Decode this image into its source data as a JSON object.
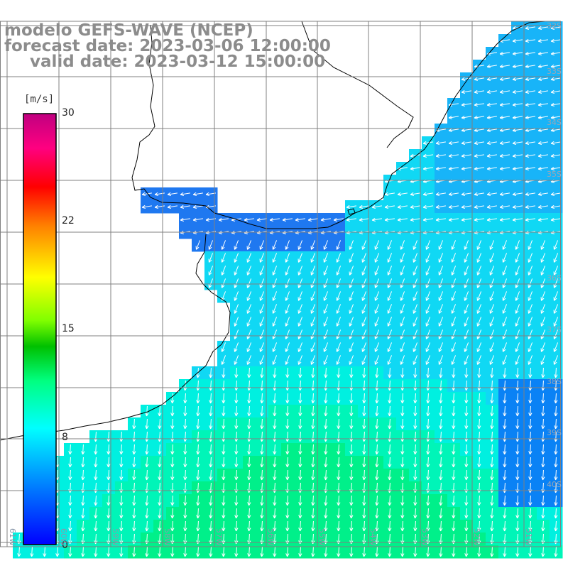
{
  "header": {
    "line1": "modelo GEFS-WAVE (NCEP)",
    "line2": "forecast date: 2023-03-06 12:00:00",
    "line3": "valid date: 2023-03-12 15:00:00"
  },
  "colorbar": {
    "unit": "[m/s]",
    "ticks": [
      "30",
      "22",
      "15",
      "8",
      "0"
    ],
    "tick_values": [
      30,
      22,
      15,
      8,
      0
    ],
    "colors": [
      "#0000ff",
      "#0080ff",
      "#00ffff",
      "#00ff80",
      "#00c000",
      "#80ff00",
      "#ffff00",
      "#ff8000",
      "#ff0000",
      "#ff0080",
      "#c00080"
    ]
  },
  "lat_labels": [
    "32S",
    "33S",
    "34S",
    "35S",
    "36S",
    "37S",
    "38S",
    "39S",
    "40S"
  ],
  "lon_labels": [
    "61W",
    "60W",
    "59W",
    "58W",
    "57W",
    "56W",
    "55W",
    "54W",
    "53W",
    "52W",
    "51W"
  ],
  "colors": {
    "land": "#ffffff",
    "grid": "#808080",
    "coast": "#000000",
    "title": "#8c8c8c",
    "arrows": "#ffffff"
  }
}
